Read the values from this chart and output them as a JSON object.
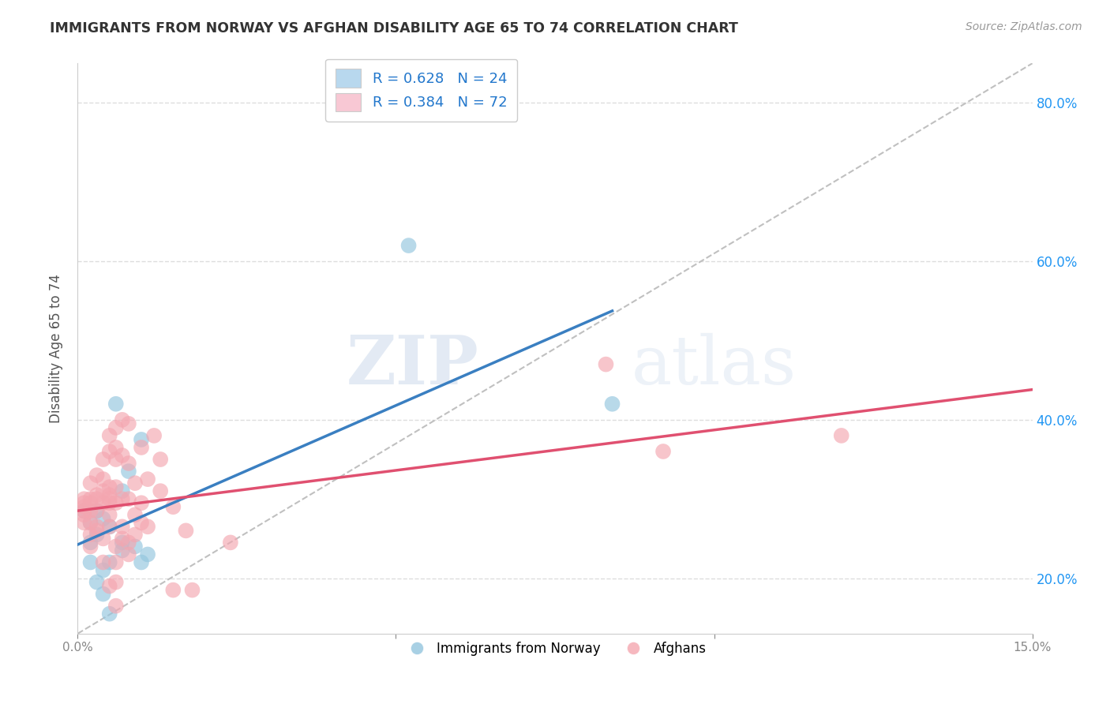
{
  "title": "IMMIGRANTS FROM NORWAY VS AFGHAN DISABILITY AGE 65 TO 74 CORRELATION CHART",
  "source": "Source: ZipAtlas.com",
  "ylabel": "Disability Age 65 to 74",
  "xlim": [
    0.0,
    0.15
  ],
  "ylim": [
    0.13,
    0.85
  ],
  "yticks": [
    0.2,
    0.4,
    0.6,
    0.8
  ],
  "yticklabels": [
    "20.0%",
    "40.0%",
    "60.0%",
    "80.0%"
  ],
  "norway_R": 0.628,
  "norway_N": 24,
  "afghan_R": 0.384,
  "afghan_N": 72,
  "norway_color": "#92c5de",
  "afghan_color": "#f4a6b0",
  "norway_line_color": "#3a7fc1",
  "afghan_line_color": "#e05070",
  "trend_line_color": "#c0c0c0",
  "legend_norway_fill": "#b8d8ee",
  "legend_afghan_fill": "#f8c8d4",
  "norway_scatter": [
    [
      0.001,
      0.285
    ],
    [
      0.002,
      0.22
    ],
    [
      0.002,
      0.245
    ],
    [
      0.002,
      0.27
    ],
    [
      0.003,
      0.285
    ],
    [
      0.003,
      0.255
    ],
    [
      0.003,
      0.195
    ],
    [
      0.004,
      0.275
    ],
    [
      0.004,
      0.21
    ],
    [
      0.004,
      0.18
    ],
    [
      0.005,
      0.265
    ],
    [
      0.005,
      0.22
    ],
    [
      0.005,
      0.155
    ],
    [
      0.006,
      0.42
    ],
    [
      0.007,
      0.31
    ],
    [
      0.007,
      0.245
    ],
    [
      0.007,
      0.235
    ],
    [
      0.008,
      0.335
    ],
    [
      0.009,
      0.24
    ],
    [
      0.01,
      0.375
    ],
    [
      0.01,
      0.22
    ],
    [
      0.011,
      0.23
    ],
    [
      0.052,
      0.62
    ],
    [
      0.084,
      0.42
    ]
  ],
  "afghan_scatter": [
    [
      0.001,
      0.29
    ],
    [
      0.001,
      0.27
    ],
    [
      0.001,
      0.28
    ],
    [
      0.001,
      0.3
    ],
    [
      0.001,
      0.285
    ],
    [
      0.001,
      0.295
    ],
    [
      0.002,
      0.295
    ],
    [
      0.002,
      0.27
    ],
    [
      0.002,
      0.285
    ],
    [
      0.002,
      0.3
    ],
    [
      0.002,
      0.32
    ],
    [
      0.002,
      0.255
    ],
    [
      0.002,
      0.24
    ],
    [
      0.003,
      0.33
    ],
    [
      0.003,
      0.305
    ],
    [
      0.003,
      0.285
    ],
    [
      0.003,
      0.3
    ],
    [
      0.003,
      0.265
    ],
    [
      0.003,
      0.26
    ],
    [
      0.004,
      0.35
    ],
    [
      0.004,
      0.325
    ],
    [
      0.004,
      0.31
    ],
    [
      0.004,
      0.295
    ],
    [
      0.004,
      0.25
    ],
    [
      0.004,
      0.22
    ],
    [
      0.005,
      0.38
    ],
    [
      0.005,
      0.36
    ],
    [
      0.005,
      0.315
    ],
    [
      0.005,
      0.305
    ],
    [
      0.005,
      0.3
    ],
    [
      0.005,
      0.295
    ],
    [
      0.005,
      0.28
    ],
    [
      0.005,
      0.265
    ],
    [
      0.005,
      0.19
    ],
    [
      0.006,
      0.39
    ],
    [
      0.006,
      0.365
    ],
    [
      0.006,
      0.35
    ],
    [
      0.006,
      0.315
    ],
    [
      0.006,
      0.295
    ],
    [
      0.006,
      0.24
    ],
    [
      0.006,
      0.22
    ],
    [
      0.006,
      0.195
    ],
    [
      0.006,
      0.165
    ],
    [
      0.007,
      0.4
    ],
    [
      0.007,
      0.355
    ],
    [
      0.007,
      0.3
    ],
    [
      0.007,
      0.265
    ],
    [
      0.007,
      0.25
    ],
    [
      0.008,
      0.395
    ],
    [
      0.008,
      0.345
    ],
    [
      0.008,
      0.3
    ],
    [
      0.008,
      0.245
    ],
    [
      0.008,
      0.23
    ],
    [
      0.009,
      0.32
    ],
    [
      0.009,
      0.28
    ],
    [
      0.009,
      0.255
    ],
    [
      0.01,
      0.365
    ],
    [
      0.01,
      0.295
    ],
    [
      0.01,
      0.27
    ],
    [
      0.011,
      0.325
    ],
    [
      0.011,
      0.265
    ],
    [
      0.012,
      0.38
    ],
    [
      0.013,
      0.35
    ],
    [
      0.013,
      0.31
    ],
    [
      0.015,
      0.29
    ],
    [
      0.015,
      0.185
    ],
    [
      0.017,
      0.26
    ],
    [
      0.018,
      0.185
    ],
    [
      0.024,
      0.245
    ],
    [
      0.083,
      0.47
    ],
    [
      0.092,
      0.36
    ],
    [
      0.12,
      0.38
    ]
  ],
  "norway_line_x": [
    0.0,
    0.084
  ],
  "afghan_line_x": [
    0.0,
    0.15
  ],
  "diag_line": [
    [
      0.0,
      0.13
    ],
    [
      0.15,
      0.85
    ]
  ],
  "watermark_zip": "ZIP",
  "watermark_atlas": "atlas",
  "background_color": "#ffffff",
  "grid_color": "#dddddd",
  "legend_box_color": "#cccccc"
}
